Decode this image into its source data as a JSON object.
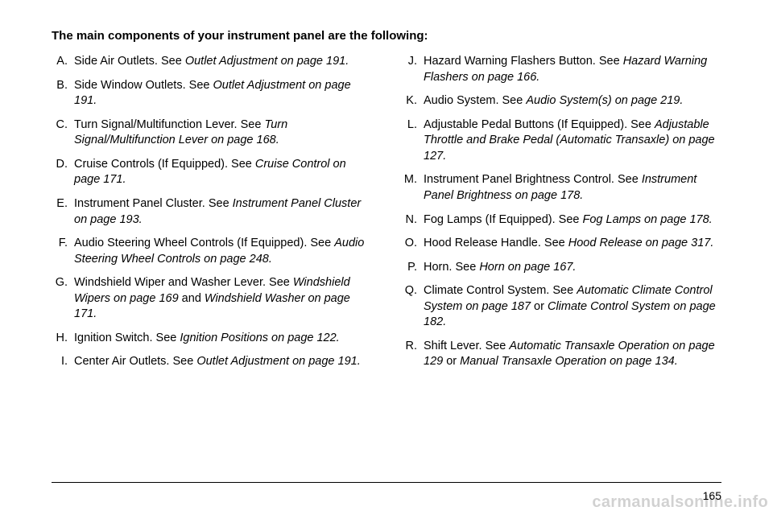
{
  "heading": "The main components of your instrument panel are the following:",
  "left": [
    {
      "letter": "A.",
      "plain": "Side Air Outlets. See ",
      "ital": "Outlet Adjustment on page 191.",
      "tail": ""
    },
    {
      "letter": "B.",
      "plain": "Side Window Outlets. See ",
      "ital": "Outlet Adjustment on page 191.",
      "tail": ""
    },
    {
      "letter": "C.",
      "plain": "Turn Signal/Multifunction Lever. See ",
      "ital": "Turn Signal/Multifunction Lever on page 168.",
      "tail": ""
    },
    {
      "letter": "D.",
      "plain": "Cruise Controls (If Equipped). See ",
      "ital": "Cruise Control on page 171.",
      "tail": ""
    },
    {
      "letter": "E.",
      "plain": "Instrument Panel Cluster. See ",
      "ital": "Instrument Panel Cluster on page 193.",
      "tail": ""
    },
    {
      "letter": "F.",
      "plain": "Audio Steering Wheel Controls (If Equipped). See ",
      "ital": "Audio Steering Wheel Controls on page 248.",
      "tail": ""
    },
    {
      "letter": "G.",
      "plain": "Windshield Wiper and Washer Lever. See ",
      "ital": "Windshield Wipers on page 169",
      "tail": " and ",
      "ital2": "Windshield Washer on page 171."
    },
    {
      "letter": "H.",
      "plain": "Ignition Switch. See ",
      "ital": "Ignition Positions on page 122.",
      "tail": ""
    },
    {
      "letter": "I.",
      "plain": "Center Air Outlets. See ",
      "ital": "Outlet Adjustment on page 191.",
      "tail": ""
    }
  ],
  "right": [
    {
      "letter": "J.",
      "plain": "Hazard Warning Flashers Button. See ",
      "ital": "Hazard Warning Flashers on page 166.",
      "tail": ""
    },
    {
      "letter": "K.",
      "plain": "Audio System. See ",
      "ital": "Audio System(s) on page 219.",
      "tail": ""
    },
    {
      "letter": "L.",
      "plain": "Adjustable Pedal Buttons (If Equipped). See ",
      "ital": "Adjustable Throttle and Brake Pedal (Automatic Transaxle) on page 127.",
      "tail": ""
    },
    {
      "letter": "M.",
      "plain": "Instrument Panel Brightness Control. See ",
      "ital": "Instrument Panel Brightness on page 178.",
      "tail": ""
    },
    {
      "letter": "N.",
      "plain": "Fog Lamps (If Equipped). See ",
      "ital": "Fog Lamps on page 178.",
      "tail": ""
    },
    {
      "letter": "O.",
      "plain": "Hood Release Handle. See ",
      "ital": "Hood Release on page 317.",
      "tail": ""
    },
    {
      "letter": "P.",
      "plain": "Horn. See ",
      "ital": "Horn on page 167.",
      "tail": ""
    },
    {
      "letter": "Q.",
      "plain": "Climate Control System. See ",
      "ital": "Automatic Climate Control System on page 187",
      "tail": " or ",
      "ital2": "Climate Control System on page 182."
    },
    {
      "letter": "R.",
      "plain": "Shift Lever. See ",
      "ital": "Automatic Transaxle Operation on page 129",
      "tail": " or ",
      "ital2": "Manual Transaxle Operation on page 134."
    }
  ],
  "pagenum": "165",
  "watermark": "carmanualsonline.info"
}
